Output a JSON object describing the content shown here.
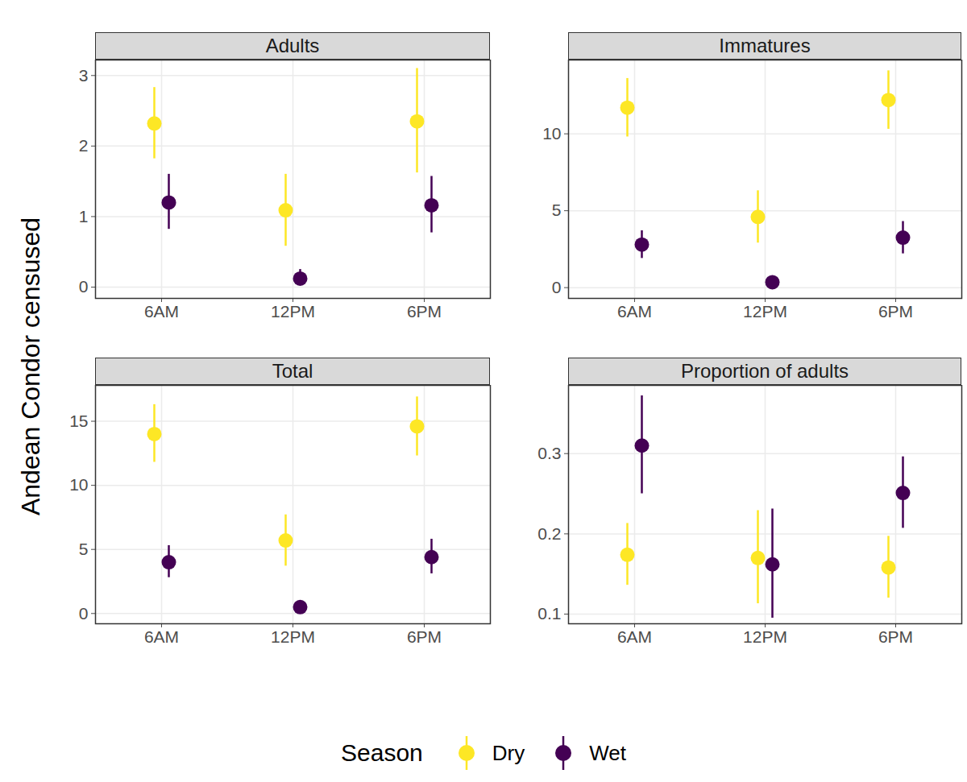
{
  "ylabel": "Andean Condor censused",
  "legend_title": "Season",
  "legend": "bottom",
  "chart_data": [
    {
      "type": "scatter",
      "title": "Adults",
      "categories": [
        "6AM",
        "12PM",
        "6PM"
      ],
      "series": [
        {
          "name": "Dry",
          "color": "#FDE725",
          "values": [
            2.32,
            1.09,
            2.35
          ],
          "lower": [
            1.82,
            0.58,
            1.62
          ],
          "upper": [
            2.83,
            1.6,
            3.1
          ]
        },
        {
          "name": "Wet",
          "color": "#440154",
          "values": [
            1.2,
            0.12,
            1.16
          ],
          "lower": [
            0.82,
            0.03,
            0.77
          ],
          "upper": [
            1.6,
            0.25,
            1.57
          ]
        }
      ],
      "ylim": [
        -0.16,
        3.22
      ],
      "yticks": [
        0,
        1,
        2,
        3
      ],
      "grid": true
    },
    {
      "type": "scatter",
      "title": "Immatures",
      "categories": [
        "6AM",
        "12PM",
        "6PM"
      ],
      "series": [
        {
          "name": "Dry",
          "color": "#FDE725",
          "values": [
            11.7,
            4.6,
            12.2
          ],
          "lower": [
            9.8,
            2.9,
            10.3
          ],
          "upper": [
            13.6,
            6.3,
            14.1
          ]
        },
        {
          "name": "Wet",
          "color": "#440154",
          "values": [
            2.8,
            0.35,
            3.25
          ],
          "lower": [
            1.9,
            0.1,
            2.2
          ],
          "upper": [
            3.7,
            0.6,
            4.3
          ]
        }
      ],
      "ylim": [
        -0.7,
        14.8
      ],
      "yticks": [
        0,
        5,
        10
      ],
      "grid": true
    },
    {
      "type": "scatter",
      "title": "Total",
      "categories": [
        "6AM",
        "12PM",
        "6PM"
      ],
      "series": [
        {
          "name": "Dry",
          "color": "#FDE725",
          "values": [
            14.0,
            5.7,
            14.6
          ],
          "lower": [
            11.8,
            3.7,
            12.3
          ],
          "upper": [
            16.3,
            7.7,
            16.9
          ]
        },
        {
          "name": "Wet",
          "color": "#440154",
          "values": [
            4.0,
            0.5,
            4.4
          ],
          "lower": [
            2.8,
            0.2,
            3.1
          ],
          "upper": [
            5.3,
            0.8,
            5.8
          ]
        }
      ],
      "ylim": [
        -0.8,
        17.8
      ],
      "yticks": [
        0,
        5,
        10,
        15
      ],
      "grid": true
    },
    {
      "type": "scatter",
      "title": "Proportion of adults",
      "categories": [
        "6AM",
        "12PM",
        "6PM"
      ],
      "series": [
        {
          "name": "Dry",
          "color": "#FDE725",
          "values": [
            0.174,
            0.17,
            0.158
          ],
          "lower": [
            0.136,
            0.113,
            0.12
          ],
          "upper": [
            0.213,
            0.229,
            0.197
          ]
        },
        {
          "name": "Wet",
          "color": "#440154",
          "values": [
            0.31,
            0.162,
            0.251
          ],
          "lower": [
            0.25,
            0.095,
            0.207
          ],
          "upper": [
            0.372,
            0.231,
            0.296
          ]
        }
      ],
      "ylim": [
        0.088,
        0.385
      ],
      "yticks": [
        0.1,
        0.2,
        0.3
      ],
      "grid": true
    }
  ]
}
